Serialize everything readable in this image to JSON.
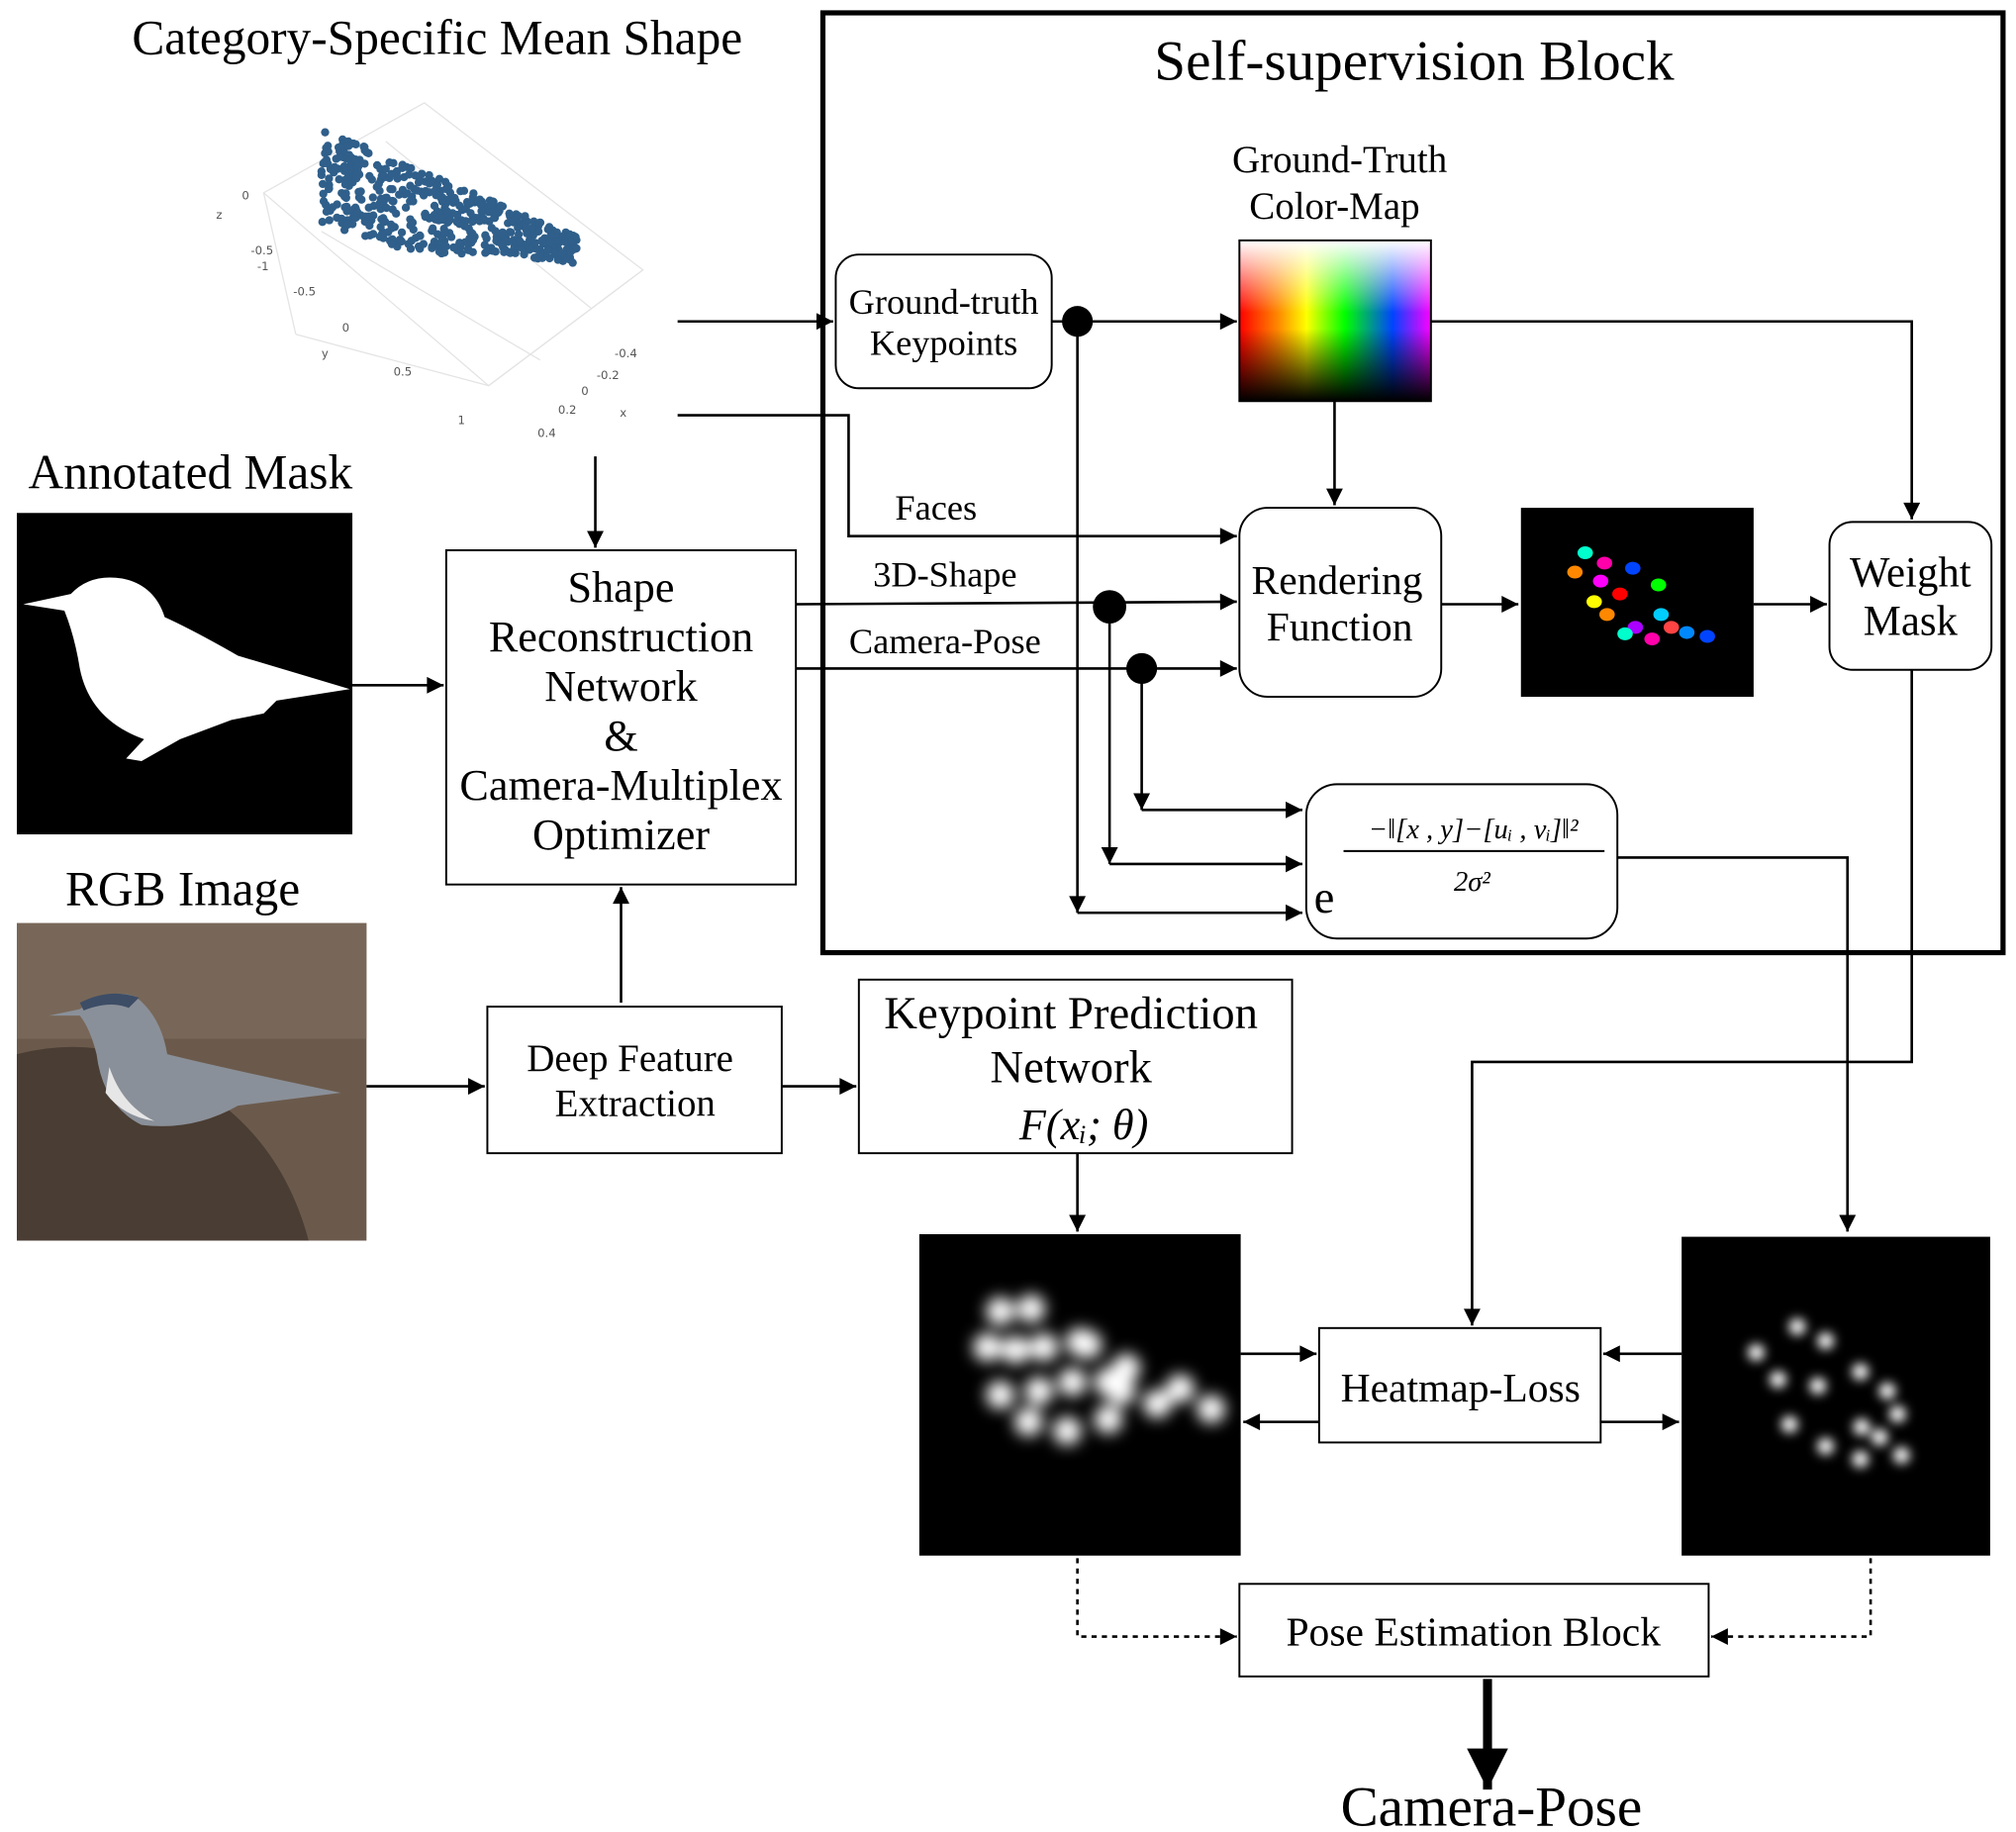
{
  "labels": {
    "mean_shape": "Category-Specific Mean Shape",
    "annotated_mask": "Annotated Mask",
    "rgb_image": "RGB Image",
    "self_supervision": "Self-supervision Block",
    "output": "Camera-Pose"
  },
  "plot_axes": {
    "z_axis": "z",
    "y_axis": "y",
    "x_axis": "x",
    "z_ticks": [
      "0",
      "-0.5",
      "-1"
    ],
    "y_ticks": [
      "-0.5",
      "0",
      "0.5",
      "1"
    ],
    "x_ticks": [
      "-0.4",
      "-0.2",
      "0",
      "0.2",
      "0.4"
    ]
  },
  "nodes": [
    {
      "lines": [
        "Ground-truth",
        "Keypoints"
      ]
    },
    {
      "lines": [
        "Ground-Truth",
        "Color-Map"
      ]
    },
    {
      "lines": [
        "Rendering",
        "Function"
      ]
    },
    {
      "lines": [
        "Weight",
        "Mask"
      ]
    },
    {
      "lines": [
        "Shape",
        "Reconstruction",
        "Network",
        "&",
        "Camera-Multiplex",
        "Optimizer"
      ]
    },
    {
      "lines": [
        "Deep Feature",
        "Extraction"
      ]
    },
    {
      "lines": [
        "Keypoint Prediction",
        "Network",
        "F(xᵢ; θ)"
      ]
    },
    {
      "lines": [
        "Heatmap-Loss"
      ]
    },
    {
      "lines": [
        "Pose Estimation Block"
      ]
    }
  ],
  "edges": [
    "Faces",
    "3D-Shape",
    "Camera-Pose"
  ],
  "formula": {
    "base": "e",
    "numerator": "−‖[x , y]−[uᵢ , vᵢ]‖²",
    "denominator": "2σ²"
  }
}
